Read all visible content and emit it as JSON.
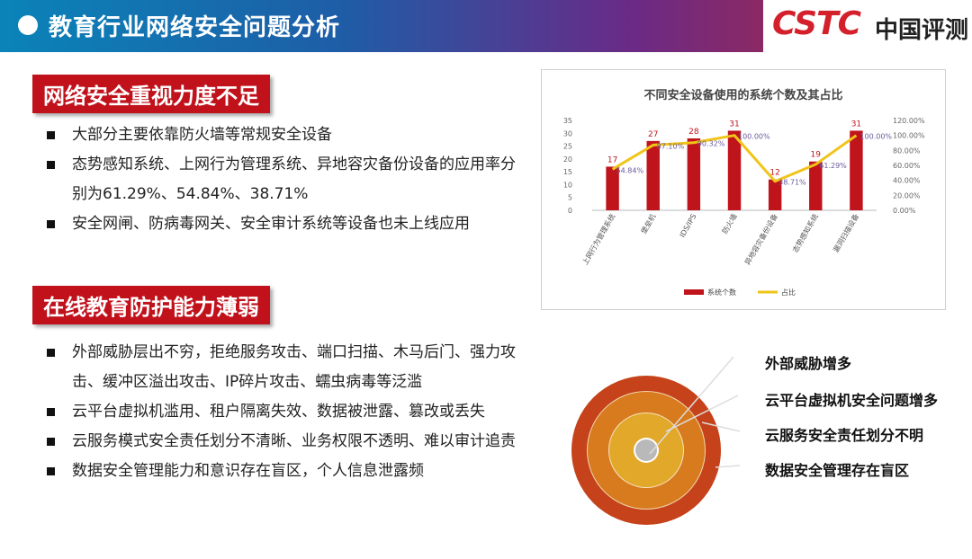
{
  "header": {
    "title": "教育行业网络安全问题分析",
    "logo_brand": "CSTC",
    "logo_text": "中国评测"
  },
  "section1": {
    "title": "网络安全重视力度不足",
    "bullets": [
      "大部分主要依靠防火墙等常规安全设备",
      "态势感知系统、上网行为管理系统、异地容灾备份设备的应用率分别为61.29%、54.84%、38.71%",
      "安全网闸、防病毒网关、安全审计系统等设备也未上线应用"
    ]
  },
  "section2": {
    "title": "在线教育防护能力薄弱",
    "bullets": [
      "外部威胁层出不穷，拒绝服务攻击、端口扫描、木马后门、强力攻击、缓冲区溢出攻击、IP碎片攻击、蠕虫病毒等泛滥",
      "云平台虚拟机滥用、租户隔离失效、数据被泄露、篡改或丢失",
      "云服务模式安全责任划分不清晰、业务权限不透明、难以审计追责",
      "数据安全管理能力和意识存在盲区，个人信息泄露频"
    ]
  },
  "chart_data": {
    "type": "bar",
    "title": "不同安全设备使用的系统个数及其占比",
    "categories": [
      "上网行为管理系统",
      "堡垒机",
      "IDS/IPS",
      "防火墙",
      "异地容灾备份设备",
      "态势感知系统",
      "漏洞扫描设备"
    ],
    "series": [
      {
        "name": "系统个数",
        "type": "bar",
        "axis": "left",
        "values": [
          17,
          27,
          28,
          31,
          12,
          19,
          31
        ],
        "labels": [
          "17",
          "27",
          "28",
          "31",
          "12",
          "19",
          "31"
        ]
      },
      {
        "name": "占比",
        "type": "line",
        "axis": "right",
        "values": [
          54.84,
          87.1,
          90.32,
          100.0,
          38.71,
          61.29,
          100.0
        ],
        "labels": [
          "54.84%",
          "87.10%",
          "90.32%",
          "100.00%",
          "38.71%",
          "61.29%",
          "100.00%"
        ]
      }
    ],
    "y_left": {
      "min": 0,
      "max": 35,
      "ticks": [
        "0",
        "5",
        "10",
        "15",
        "20",
        "25",
        "30",
        "35"
      ]
    },
    "y_right": {
      "min": 0,
      "max": 120,
      "ticks": [
        "0.00%",
        "20.00%",
        "40.00%",
        "60.00%",
        "80.00%",
        "100.00%",
        "120.00%"
      ]
    },
    "legend_position": "bottom",
    "colors": {
      "bar": "#c0141c",
      "line": "#f0c419",
      "bar_label": "#c0141c",
      "line_label": "#6a5a9a"
    }
  },
  "circle_labels": [
    "外部威胁增多",
    "云平台虚拟机安全问题增多",
    "云服务安全责任划分不明",
    "数据安全管理存在盲区"
  ],
  "colors": {
    "accent": "#c1121c",
    "ring_outer": "#c5421a",
    "ring_mid": "#d87a1e",
    "ring_inner": "#e2a82a",
    "ring_core": "#b9b9b9"
  }
}
